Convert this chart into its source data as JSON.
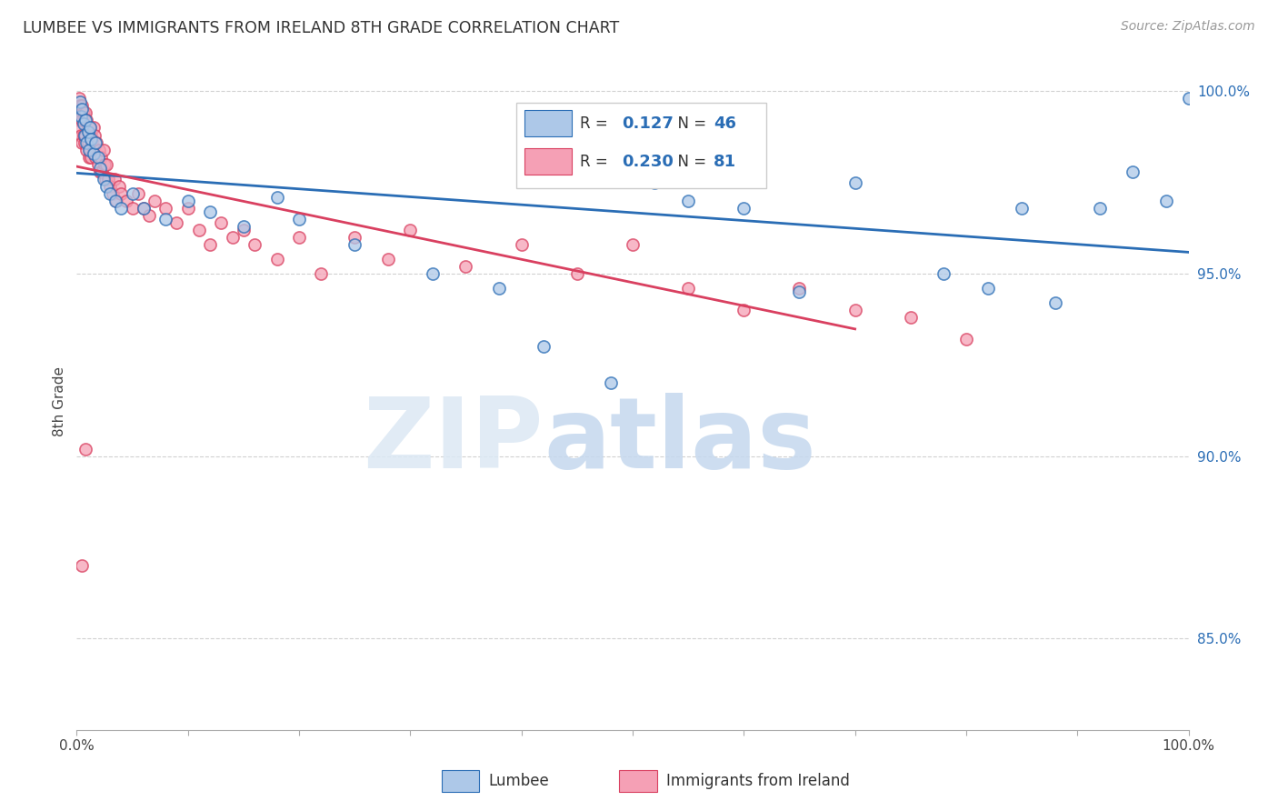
{
  "title": "LUMBEE VS IMMIGRANTS FROM IRELAND 8TH GRADE CORRELATION CHART",
  "source": "Source: ZipAtlas.com",
  "ylabel": "8th Grade",
  "legend_labels": [
    "Lumbee",
    "Immigrants from Ireland"
  ],
  "r_lumbee": 0.127,
  "n_lumbee": 46,
  "r_ireland": 0.23,
  "n_ireland": 81,
  "color_lumbee": "#adc8e8",
  "color_ireland": "#f5a0b5",
  "trendline_lumbee": "#2a6db5",
  "trendline_ireland": "#d94060",
  "xlim": [
    0.0,
    1.0
  ],
  "ylim": [
    0.825,
    1.005
  ],
  "yticks": [
    0.85,
    0.9,
    0.95,
    1.0
  ],
  "ytick_labels": [
    "85.0%",
    "90.0%",
    "95.0%",
    "100.0%"
  ],
  "watermark_zip": "ZIP",
  "watermark_atlas": "atlas",
  "lumbee_x": [
    0.003,
    0.004,
    0.005,
    0.006,
    0.007,
    0.008,
    0.009,
    0.01,
    0.011,
    0.012,
    0.013,
    0.015,
    0.017,
    0.019,
    0.021,
    0.024,
    0.027,
    0.03,
    0.035,
    0.04,
    0.05,
    0.06,
    0.08,
    0.1,
    0.12,
    0.15,
    0.18,
    0.2,
    0.25,
    0.32,
    0.38,
    0.48,
    0.52,
    0.55,
    0.6,
    0.65,
    0.7,
    0.78,
    0.82,
    0.85,
    0.88,
    0.92,
    0.95,
    0.98,
    1.0,
    0.42
  ],
  "lumbee_y": [
    0.997,
    0.993,
    0.995,
    0.991,
    0.988,
    0.992,
    0.986,
    0.989,
    0.984,
    0.99,
    0.987,
    0.983,
    0.986,
    0.982,
    0.979,
    0.976,
    0.974,
    0.972,
    0.97,
    0.968,
    0.972,
    0.968,
    0.965,
    0.97,
    0.967,
    0.963,
    0.971,
    0.965,
    0.958,
    0.95,
    0.946,
    0.92,
    0.975,
    0.97,
    0.968,
    0.945,
    0.975,
    0.95,
    0.946,
    0.968,
    0.942,
    0.968,
    0.978,
    0.97,
    0.998,
    0.93
  ],
  "ireland_x": [
    0.001,
    0.002,
    0.002,
    0.003,
    0.003,
    0.004,
    0.004,
    0.005,
    0.005,
    0.005,
    0.006,
    0.006,
    0.007,
    0.007,
    0.008,
    0.008,
    0.009,
    0.009,
    0.01,
    0.01,
    0.011,
    0.011,
    0.012,
    0.012,
    0.013,
    0.013,
    0.014,
    0.015,
    0.015,
    0.016,
    0.017,
    0.018,
    0.019,
    0.02,
    0.021,
    0.022,
    0.023,
    0.024,
    0.025,
    0.026,
    0.027,
    0.028,
    0.03,
    0.032,
    0.034,
    0.036,
    0.038,
    0.04,
    0.045,
    0.05,
    0.055,
    0.06,
    0.065,
    0.07,
    0.08,
    0.09,
    0.1,
    0.11,
    0.12,
    0.13,
    0.14,
    0.15,
    0.16,
    0.18,
    0.2,
    0.22,
    0.25,
    0.28,
    0.3,
    0.35,
    0.4,
    0.45,
    0.5,
    0.55,
    0.6,
    0.65,
    0.7,
    0.75,
    0.8,
    0.005,
    0.008
  ],
  "ireland_y": [
    0.994,
    0.998,
    0.992,
    0.996,
    0.99,
    0.994,
    0.988,
    0.996,
    0.992,
    0.986,
    0.994,
    0.988,
    0.992,
    0.986,
    0.994,
    0.988,
    0.992,
    0.984,
    0.99,
    0.986,
    0.988,
    0.982,
    0.99,
    0.984,
    0.988,
    0.982,
    0.986,
    0.99,
    0.984,
    0.988,
    0.982,
    0.986,
    0.98,
    0.984,
    0.978,
    0.982,
    0.978,
    0.984,
    0.98,
    0.976,
    0.98,
    0.976,
    0.974,
    0.972,
    0.976,
    0.97,
    0.974,
    0.972,
    0.97,
    0.968,
    0.972,
    0.968,
    0.966,
    0.97,
    0.968,
    0.964,
    0.968,
    0.962,
    0.958,
    0.964,
    0.96,
    0.962,
    0.958,
    0.954,
    0.96,
    0.95,
    0.96,
    0.954,
    0.962,
    0.952,
    0.958,
    0.95,
    0.958,
    0.946,
    0.94,
    0.946,
    0.94,
    0.938,
    0.932,
    0.87,
    0.902
  ]
}
